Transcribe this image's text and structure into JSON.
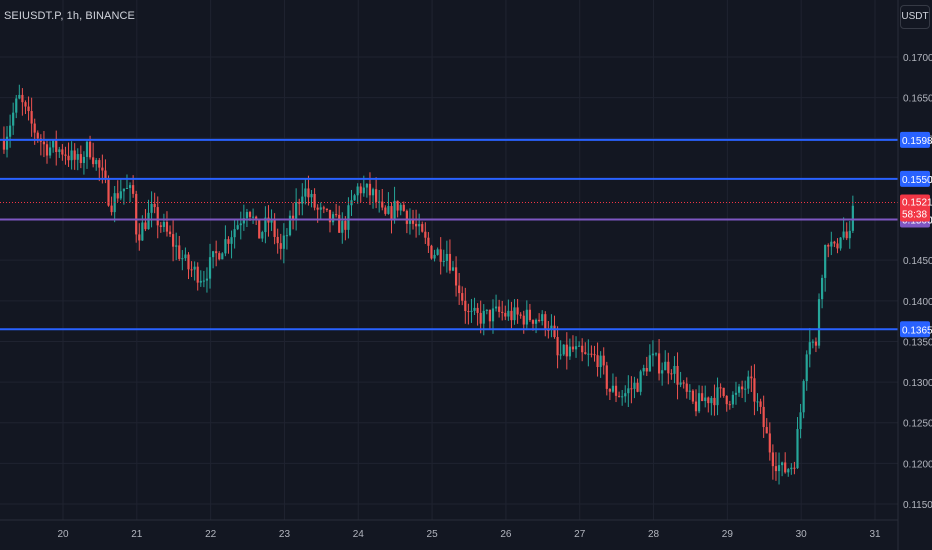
{
  "header": {
    "symbol": "SEIUSDT.P, 1h, BINANCE",
    "currency_button": "USDT"
  },
  "colors": {
    "background": "#131722",
    "up": "#26a69a",
    "down": "#ef5350",
    "level_line": "#2962ff",
    "purple_line": "#7e57c2",
    "price_label": "#f23645"
  },
  "chart_data": {
    "type": "candlestick",
    "ylim": [
      0.1125,
      0.175
    ],
    "y_ticks": [
      "0.1700",
      "0.1650",
      "0.1600",
      "0.1550",
      "0.1500",
      "0.1450",
      "0.1400",
      "0.1350",
      "0.1300",
      "0.1250",
      "0.1200",
      "0.1150"
    ],
    "x_ticks": [
      "20",
      "21",
      "22",
      "23",
      "24",
      "25",
      "26",
      "27",
      "28",
      "29",
      "30",
      "31"
    ],
    "horizontal_levels": [
      {
        "value": 0.1598,
        "label": "0.1598",
        "color": "#2962ff"
      },
      {
        "value": 0.155,
        "label": "0.1550",
        "color": "#2962ff"
      },
      {
        "value": 0.1365,
        "label": "0.1365",
        "color": "#2962ff"
      },
      {
        "value": 0.15,
        "label": "0.1500",
        "color": "#7e57c2"
      }
    ],
    "last_price": {
      "value": 0.1521,
      "label": "0.1521",
      "countdown": "58:38"
    },
    "close_path": [
      [
        19.2,
        0.1598
      ],
      [
        19.4,
        0.165
      ],
      [
        19.55,
        0.162
      ],
      [
        19.75,
        0.159
      ],
      [
        20.0,
        0.1585
      ],
      [
        20.2,
        0.157
      ],
      [
        20.35,
        0.159
      ],
      [
        20.5,
        0.156
      ],
      [
        20.65,
        0.152
      ],
      [
        20.8,
        0.154
      ],
      [
        20.95,
        0.153
      ],
      [
        21.0,
        0.148
      ],
      [
        21.2,
        0.151
      ],
      [
        21.35,
        0.149
      ],
      [
        21.5,
        0.147
      ],
      [
        21.7,
        0.144
      ],
      [
        21.9,
        0.143
      ],
      [
        22.1,
        0.146
      ],
      [
        22.25,
        0.148
      ],
      [
        22.4,
        0.15
      ],
      [
        22.5,
        0.152
      ],
      [
        22.65,
        0.148
      ],
      [
        22.8,
        0.15
      ],
      [
        22.95,
        0.146
      ],
      [
        23.1,
        0.15
      ],
      [
        23.25,
        0.154
      ],
      [
        23.45,
        0.151
      ],
      [
        23.6,
        0.15
      ],
      [
        23.8,
        0.149
      ],
      [
        24.0,
        0.154
      ],
      [
        24.2,
        0.153
      ],
      [
        24.35,
        0.15
      ],
      [
        24.55,
        0.152
      ],
      [
        24.7,
        0.15
      ],
      [
        24.85,
        0.148
      ],
      [
        25.0,
        0.146
      ],
      [
        25.2,
        0.146
      ],
      [
        25.35,
        0.142
      ],
      [
        25.5,
        0.138
      ],
      [
        25.7,
        0.138
      ],
      [
        25.9,
        0.1385
      ],
      [
        26.2,
        0.138
      ],
      [
        26.4,
        0.138
      ],
      [
        26.6,
        0.137
      ],
      [
        26.7,
        0.133
      ],
      [
        26.9,
        0.134
      ],
      [
        27.05,
        0.133
      ],
      [
        27.25,
        0.133
      ],
      [
        27.4,
        0.129
      ],
      [
        27.6,
        0.1285
      ],
      [
        27.8,
        0.13
      ],
      [
        27.95,
        0.133
      ],
      [
        28.1,
        0.132
      ],
      [
        28.25,
        0.132
      ],
      [
        28.4,
        0.129
      ],
      [
        28.55,
        0.127
      ],
      [
        28.7,
        0.128
      ],
      [
        28.9,
        0.1285
      ],
      [
        29.1,
        0.128
      ],
      [
        29.3,
        0.13
      ],
      [
        29.45,
        0.126
      ],
      [
        29.6,
        0.121
      ],
      [
        29.75,
        0.119
      ],
      [
        29.9,
        0.12
      ],
      [
        30.0,
        0.127
      ],
      [
        30.05,
        0.133
      ],
      [
        30.1,
        0.136
      ],
      [
        30.2,
        0.134
      ],
      [
        30.25,
        0.142
      ],
      [
        30.35,
        0.148
      ],
      [
        30.45,
        0.146
      ],
      [
        30.55,
        0.149
      ],
      [
        30.65,
        0.147
      ],
      [
        30.72,
        0.1521
      ]
    ]
  }
}
